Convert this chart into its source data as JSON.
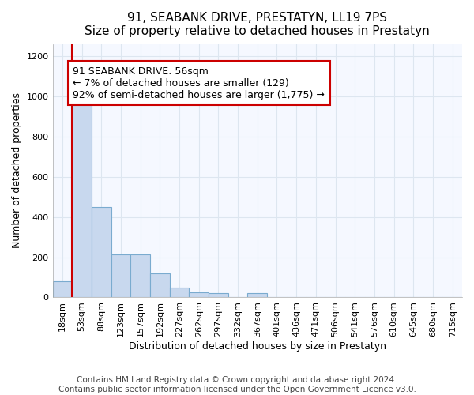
{
  "title": "91, SEABANK DRIVE, PRESTATYN, LL19 7PS",
  "subtitle": "Size of property relative to detached houses in Prestatyn",
  "xlabel": "Distribution of detached houses by size in Prestatyn",
  "ylabel": "Number of detached properties",
  "bar_labels": [
    "18sqm",
    "53sqm",
    "88sqm",
    "123sqm",
    "157sqm",
    "192sqm",
    "227sqm",
    "262sqm",
    "297sqm",
    "332sqm",
    "367sqm",
    "401sqm",
    "436sqm",
    "471sqm",
    "506sqm",
    "541sqm",
    "576sqm",
    "610sqm",
    "645sqm",
    "680sqm",
    "715sqm"
  ],
  "bar_values": [
    80,
    975,
    450,
    215,
    215,
    120,
    47,
    25,
    22,
    0,
    20,
    0,
    0,
    0,
    0,
    0,
    0,
    0,
    0,
    0,
    0
  ],
  "bar_color": "#c8d8ee",
  "bar_edge_color": "#7aabcf",
  "ylim": [
    0,
    1260
  ],
  "yticks": [
    0,
    200,
    400,
    600,
    800,
    1000,
    1200
  ],
  "property_line_x": 0.5,
  "annotation_text": "91 SEABANK DRIVE: 56sqm\n← 7% of detached houses are smaller (129)\n92% of semi-detached houses are larger (1,775) →",
  "annotation_box_color": "#ffffff",
  "annotation_box_edge_color": "#cc0000",
  "property_line_color": "#cc0000",
  "footer_text": "Contains HM Land Registry data © Crown copyright and database right 2024.\nContains public sector information licensed under the Open Government Licence v3.0.",
  "bg_color": "#ffffff",
  "plot_bg_color": "#f5f8ff",
  "grid_color": "#dde6f0",
  "title_fontsize": 11,
  "subtitle_fontsize": 10,
  "axis_label_fontsize": 9,
  "tick_fontsize": 8,
  "annotation_fontsize": 9,
  "footer_fontsize": 7.5
}
